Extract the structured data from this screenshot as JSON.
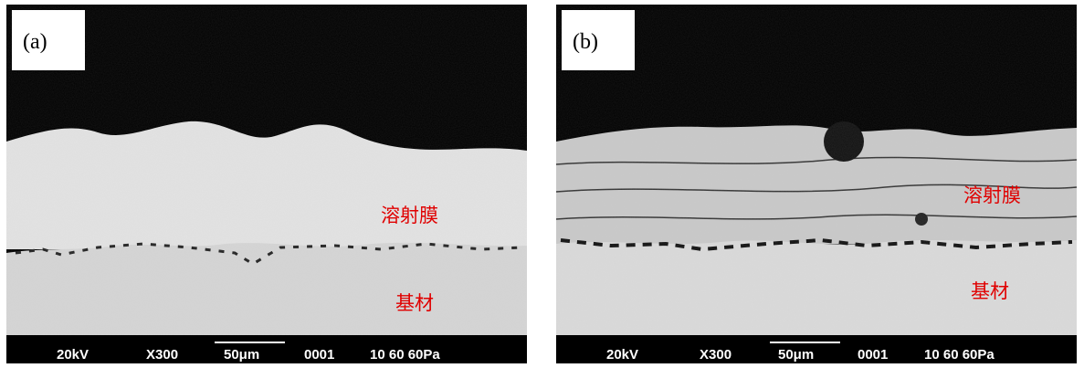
{
  "panels": [
    {
      "label": "(a)",
      "coating_label": "溶射膜",
      "substrate_label": "基材",
      "info_bar": [
        "20kV",
        "X300",
        "50μm",
        "0001",
        "10 60 60Pa"
      ]
    },
    {
      "label": "(b)",
      "coating_label": "溶射膜",
      "substrate_label": "基材",
      "info_bar": [
        "20kV",
        "X300",
        "50μm",
        "0001",
        "10 60 60Pa"
      ]
    }
  ]
}
